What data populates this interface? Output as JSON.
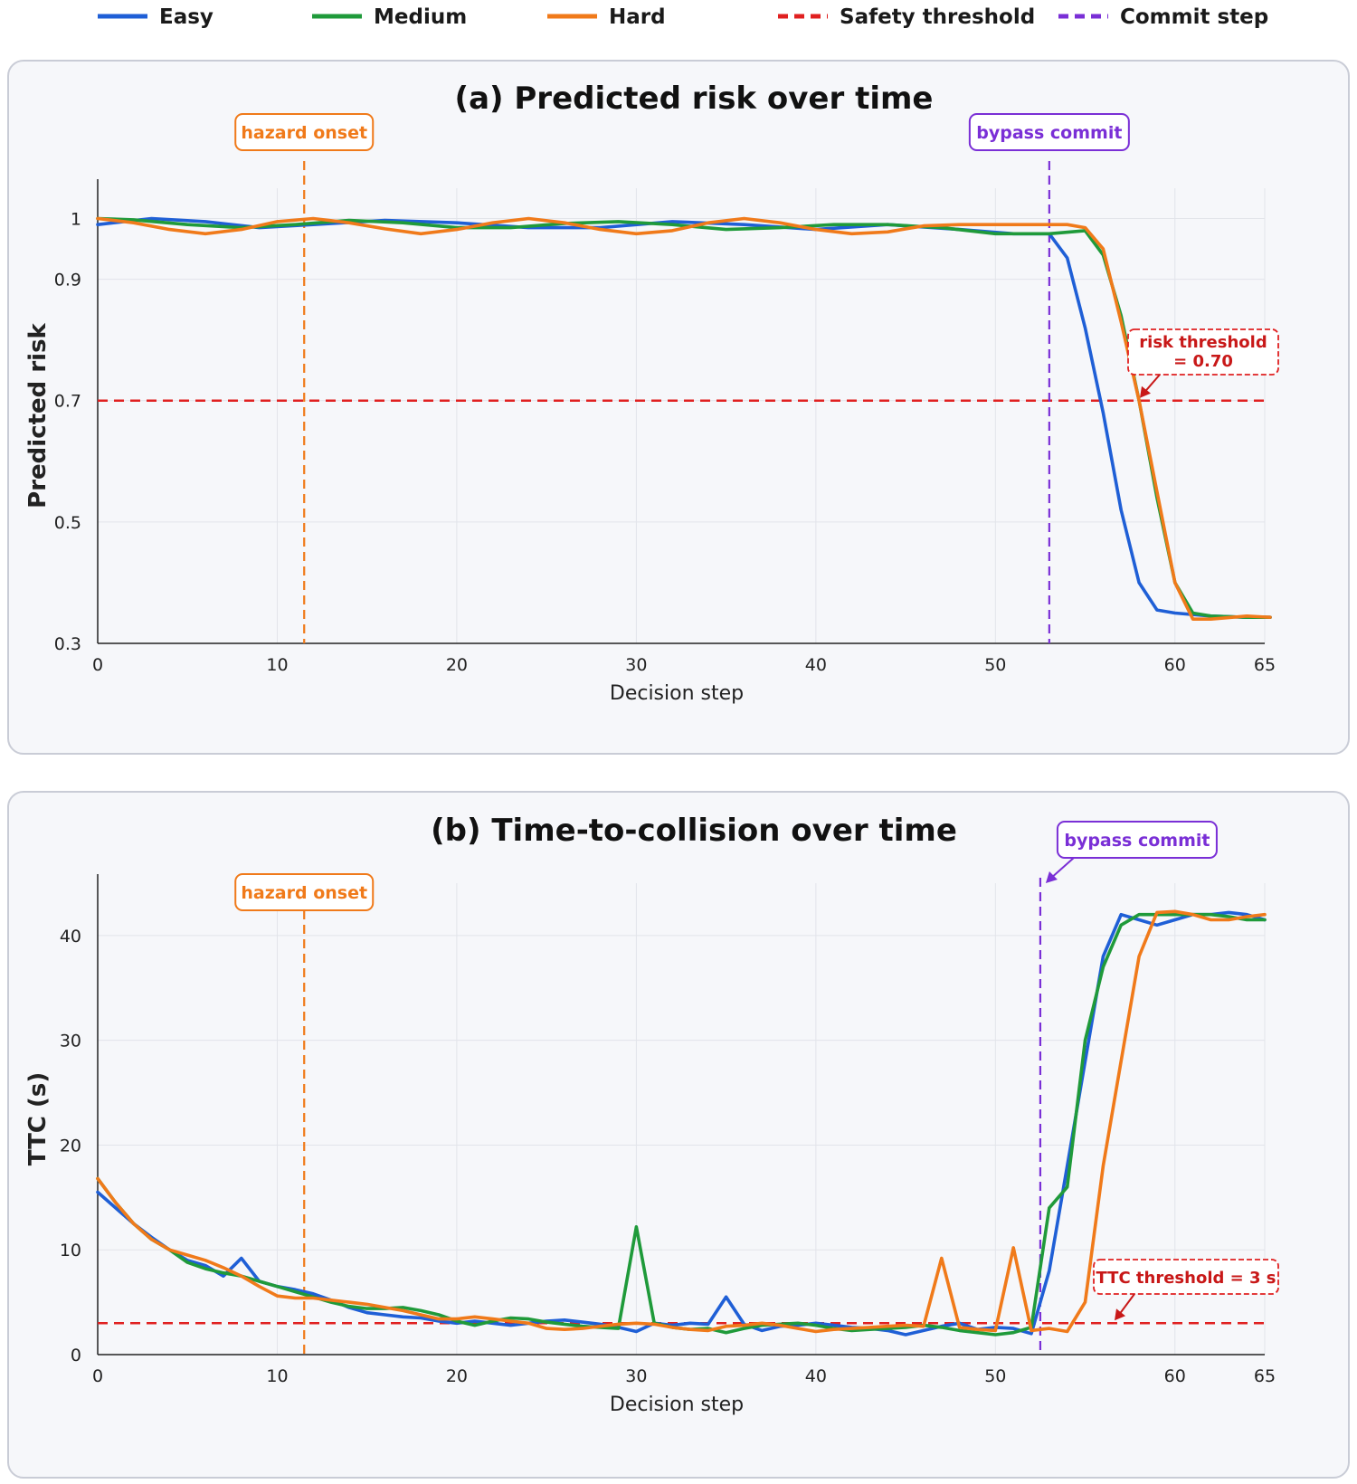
{
  "legend": [
    {
      "label": "Easy",
      "color": "#1f5fd6",
      "style": "solid"
    },
    {
      "label": "Medium",
      "color": "#1f9a3a",
      "style": "solid"
    },
    {
      "label": "Hard",
      "color": "#f07a1a",
      "style": "solid"
    },
    {
      "label": "Safety threshold",
      "color": "#e02020",
      "style": "dashed"
    },
    {
      "label": "Commit step",
      "color": "#7a2fd6",
      "style": "dashed"
    }
  ],
  "chart_data": [
    {
      "type": "line",
      "title": "(a) Predicted risk over time",
      "xlabel": "Decision step",
      "ylabel": "Predicted risk",
      "xlim": [
        0,
        65
      ],
      "ylim": [
        0.3,
        1.05
      ],
      "xticks": [
        0,
        10,
        20,
        30,
        40,
        50,
        60,
        65
      ],
      "yticks": [
        0.3,
        0.5,
        0.7,
        0.9,
        1
      ],
      "ytick_labels": [
        "0.3",
        "0.5",
        "0.7",
        "0.9",
        "1"
      ],
      "grid": true,
      "threshold": {
        "value": 0.7,
        "label_lines": [
          "risk threshold",
          "= 0.70"
        ]
      },
      "hazard_onset": {
        "x": 11.5,
        "label": "hazard onset"
      },
      "commit": {
        "x": 53,
        "label": "bypass commit"
      },
      "series": [
        {
          "name": "Easy",
          "color": "#1f5fd6",
          "x": [
            0,
            3,
            6,
            9,
            12,
            16,
            20,
            24,
            28,
            32,
            36,
            40,
            44,
            48,
            51,
            53,
            54,
            55,
            56,
            57,
            58,
            59,
            60,
            62,
            64,
            66
          ],
          "y": [
            0.99,
            1.0,
            0.995,
            0.985,
            0.99,
            0.997,
            0.993,
            0.985,
            0.985,
            0.995,
            0.99,
            0.982,
            0.99,
            0.982,
            0.975,
            0.975,
            0.935,
            0.82,
            0.68,
            0.52,
            0.4,
            0.355,
            0.35,
            0.345,
            0.343,
            0.343
          ]
        },
        {
          "name": "Medium",
          "color": "#1f9a3a",
          "x": [
            0,
            2,
            5,
            8,
            11,
            14,
            17,
            20,
            23,
            26,
            29,
            32,
            35,
            38,
            41,
            44,
            47,
            50,
            53,
            55,
            56,
            57,
            58,
            59,
            60,
            61,
            62,
            64,
            66
          ],
          "y": [
            1.0,
            0.998,
            0.99,
            0.985,
            0.99,
            0.997,
            0.993,
            0.985,
            0.985,
            0.992,
            0.995,
            0.99,
            0.982,
            0.985,
            0.99,
            0.99,
            0.985,
            0.975,
            0.975,
            0.98,
            0.94,
            0.84,
            0.7,
            0.54,
            0.4,
            0.35,
            0.345,
            0.343,
            0.343
          ]
        },
        {
          "name": "Hard",
          "color": "#f07a1a",
          "x": [
            0,
            2,
            4,
            6,
            8,
            10,
            12,
            14,
            16,
            18,
            20,
            22,
            24,
            26,
            28,
            30,
            32,
            34,
            36,
            38,
            40,
            42,
            44,
            46,
            48,
            50,
            52,
            54,
            55,
            56,
            57,
            58,
            59,
            60,
            61,
            62,
            64,
            66
          ],
          "y": [
            1.0,
            0.993,
            0.982,
            0.975,
            0.982,
            0.995,
            1.0,
            0.993,
            0.983,
            0.975,
            0.982,
            0.993,
            1.0,
            0.993,
            0.982,
            0.975,
            0.98,
            0.993,
            1.0,
            0.993,
            0.982,
            0.975,
            0.978,
            0.988,
            0.99,
            0.99,
            0.99,
            0.99,
            0.985,
            0.95,
            0.83,
            0.7,
            0.55,
            0.4,
            0.34,
            0.34,
            0.345,
            0.343
          ]
        }
      ]
    },
    {
      "type": "line",
      "title": "(b) Time-to-collision over time",
      "xlabel": "Decision step",
      "ylabel": "TTC (s)",
      "xlim": [
        0,
        65
      ],
      "ylim": [
        0,
        45
      ],
      "xticks": [
        0,
        10,
        20,
        30,
        40,
        50,
        60,
        65
      ],
      "yticks": [
        0,
        10,
        20,
        30,
        40
      ],
      "ytick_labels": [
        "0",
        "10",
        "20",
        "30",
        "40"
      ],
      "grid": true,
      "threshold": {
        "value": 3,
        "label_lines": [
          "TTC threshold = 3 s"
        ]
      },
      "hazard_onset": {
        "x": 11.5,
        "label": "hazard onset"
      },
      "commit": {
        "x": 52.5,
        "label": "bypass commit"
      },
      "series": [
        {
          "name": "Easy",
          "color": "#1f5fd6",
          "x": [
            0,
            1,
            2,
            3,
            4,
            5,
            6,
            7,
            8,
            9,
            10,
            11,
            12,
            13,
            14,
            15,
            16,
            17,
            18,
            19,
            20,
            21,
            22,
            23,
            24,
            25,
            26,
            27,
            28,
            29,
            30,
            31,
            32,
            33,
            34,
            35,
            36,
            37,
            38,
            39,
            40,
            41,
            42,
            43,
            44,
            45,
            46,
            47,
            48,
            49,
            50,
            51,
            52,
            53,
            54,
            55,
            56,
            57,
            58,
            59,
            60,
            61,
            62,
            63,
            64,
            65
          ],
          "y": [
            15.5,
            14,
            12.5,
            11.2,
            10,
            9,
            8.5,
            7.5,
            9.2,
            7,
            6.5,
            6.2,
            5.8,
            5.2,
            4.5,
            4,
            3.8,
            3.6,
            3.5,
            3.2,
            3,
            3.2,
            3,
            2.8,
            3,
            3.2,
            3.3,
            3.1,
            2.9,
            2.6,
            2.2,
            3,
            2.8,
            3,
            2.9,
            5.5,
            2.9,
            2.3,
            2.7,
            2.8,
            3,
            2.8,
            2.6,
            2.5,
            2.3,
            1.9,
            2.3,
            2.7,
            3,
            2.4,
            2.6,
            2.5,
            2,
            8,
            18,
            28,
            38,
            42,
            41.5,
            41,
            41.5,
            42,
            42,
            42.2,
            42,
            41.5
          ]
        },
        {
          "name": "Medium",
          "color": "#1f9a3a",
          "x": [
            0,
            1,
            2,
            3,
            4,
            5,
            6,
            7,
            8,
            9,
            10,
            11,
            12,
            13,
            14,
            15,
            16,
            17,
            18,
            19,
            20,
            21,
            22,
            23,
            24,
            25,
            26,
            27,
            28,
            29,
            30,
            31,
            32,
            33,
            34,
            35,
            36,
            37,
            38,
            39,
            40,
            41,
            42,
            43,
            44,
            45,
            46,
            47,
            48,
            49,
            50,
            51,
            52,
            53,
            54,
            55,
            56,
            57,
            58,
            59,
            60,
            61,
            62,
            63,
            64,
            65
          ],
          "y": [
            16.8,
            14.5,
            12.5,
            11,
            10,
            8.8,
            8.2,
            7.8,
            7.5,
            7,
            6.5,
            6,
            5.5,
            5,
            4.6,
            4.4,
            4.4,
            4.5,
            4.2,
            3.8,
            3.2,
            2.8,
            3.2,
            3.5,
            3.4,
            3.1,
            2.9,
            2.7,
            2.6,
            2.5,
            12.2,
            3,
            2.6,
            2.4,
            2.5,
            2.1,
            2.5,
            2.8,
            2.9,
            3,
            2.8,
            2.5,
            2.3,
            2.4,
            2.5,
            2.6,
            2.8,
            2.6,
            2.3,
            2.1,
            1.9,
            2.1,
            2.6,
            14,
            16,
            30,
            37,
            41,
            42,
            42,
            42,
            42,
            42,
            41.8,
            41.5,
            41.5
          ]
        },
        {
          "name": "Hard",
          "color": "#f07a1a",
          "x": [
            0,
            1,
            2,
            3,
            4,
            5,
            6,
            7,
            8,
            9,
            10,
            11,
            12,
            13,
            14,
            15,
            16,
            17,
            18,
            19,
            20,
            21,
            22,
            23,
            24,
            25,
            26,
            27,
            28,
            29,
            30,
            31,
            32,
            33,
            34,
            35,
            36,
            37,
            38,
            39,
            40,
            41,
            42,
            43,
            44,
            45,
            46,
            47,
            48,
            49,
            50,
            51,
            52,
            53,
            54,
            55,
            56,
            57,
            58,
            59,
            60,
            61,
            62,
            63,
            64,
            65
          ],
          "y": [
            16.8,
            14.5,
            12.5,
            11,
            10,
            9.5,
            9,
            8.3,
            7.5,
            6.5,
            5.6,
            5.4,
            5.4,
            5.2,
            5,
            4.8,
            4.5,
            4.2,
            3.8,
            3.4,
            3.4,
            3.6,
            3.4,
            3.2,
            3,
            2.5,
            2.4,
            2.5,
            2.7,
            2.9,
            3,
            2.9,
            2.6,
            2.4,
            2.3,
            2.7,
            2.8,
            3,
            2.8,
            2.5,
            2.2,
            2.4,
            2.5,
            2.6,
            2.7,
            2.8,
            2.7,
            9.2,
            2.6,
            2.4,
            2.3,
            10.2,
            2.3,
            2.5,
            2.2,
            5,
            18,
            28,
            38,
            42.2,
            42.3,
            42,
            41.5,
            41.5,
            41.8,
            42
          ]
        }
      ]
    }
  ]
}
